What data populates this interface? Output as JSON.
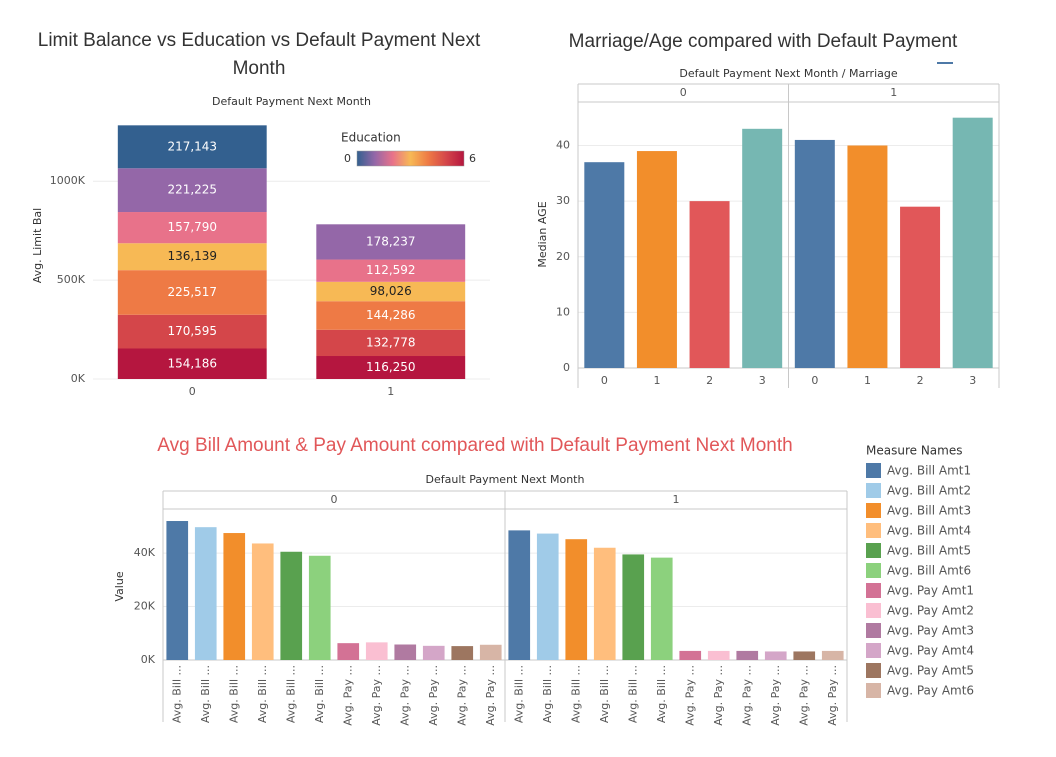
{
  "chart_data": [
    {
      "type": "stacked_bar",
      "title": "Limit Balance vs Education vs Default Payment Next Month",
      "x_header": "Default Payment Next Month",
      "y_label": "Avg. Limit Bal",
      "categories": [
        "0",
        "1"
      ],
      "series": [
        {
          "color": "#b5163f",
          "values": [
            154186,
            116250
          ],
          "value_labels": [
            "154,186",
            "116,250"
          ]
        },
        {
          "color": "#d4464a",
          "values": [
            170595,
            132778
          ],
          "value_labels": [
            "170,595",
            "132,778"
          ]
        },
        {
          "color": "#ee7a45",
          "values": [
            225517,
            144286
          ],
          "value_labels": [
            "225,517",
            "144,286"
          ]
        },
        {
          "color": "#f7b955",
          "values": [
            136139,
            98026
          ],
          "value_labels": [
            "136,139",
            "98,026"
          ]
        },
        {
          "color": "#e8728a",
          "values": [
            157790,
            112592
          ],
          "value_labels": [
            "157,790",
            "112,592"
          ]
        },
        {
          "color": "#9467a8",
          "values": [
            221225,
            178237
          ],
          "value_labels": [
            "221,225",
            "178,237"
          ]
        },
        {
          "color": "#33608f",
          "values": [
            217143,
            null
          ],
          "value_labels": [
            "217,143",
            null
          ]
        }
      ],
      "ylim": [
        0,
        1350000
      ],
      "yticks": [
        {
          "value": 0,
          "label": "0K"
        },
        {
          "value": 500000,
          "label": "500K"
        },
        {
          "value": 1000000,
          "label": "1000K"
        }
      ],
      "grid": true,
      "legend_title": "Education",
      "color_scale": {
        "min": 0,
        "max": 6,
        "colors": [
          "#33608f",
          "#9467a8",
          "#e8728a",
          "#f7b955",
          "#ee7a45",
          "#d4464a",
          "#b5163f"
        ]
      }
    },
    {
      "type": "bar",
      "title": "Marriage/Age compared with Default Payment",
      "x_header": "Default Payment Next Month / Marriage",
      "y_label": "Median AGE",
      "categories": [
        "0",
        "1",
        "2",
        "3"
      ],
      "colors": [
        "#4e79a7",
        "#f28e2b",
        "#e15759",
        "#76b7b2"
      ],
      "panels": [
        {
          "label": "0",
          "values": [
            37,
            39,
            30,
            43
          ]
        },
        {
          "label": "1",
          "values": [
            41,
            40,
            29,
            45
          ]
        }
      ],
      "ylim": [
        0,
        48
      ],
      "yticks": [
        0,
        10,
        20,
        30,
        40
      ],
      "grid": true
    },
    {
      "type": "bar",
      "title": "Avg Bill Amount & Pay Amount compared with Default Payment Next Month",
      "title_color": "#e15759",
      "x_header": "Default Payment Next Month",
      "y_label": "Value",
      "series_names": [
        "Avg. Bill Amt1",
        "Avg. Bill Amt2",
        "Avg. Bill Amt3",
        "Avg. Bill Amt4",
        "Avg. Bill Amt5",
        "Avg. Bill Amt6",
        "Avg. Pay Amt1",
        "Avg. Pay Amt2",
        "Avg. Pay Amt3",
        "Avg. Pay Amt4",
        "Avg. Pay Amt5",
        "Avg. Pay Amt6"
      ],
      "tick_labels": [
        "Avg. Bill ...",
        "Avg. Bill ...",
        "Avg. Bill ...",
        "Avg. Bill ...",
        "Avg. Bill ...",
        "Avg. Bill ...",
        "Avg. Pay ...",
        "Avg. Pay ...",
        "Avg. Pay ...",
        "Avg. Pay ...",
        "Avg. Pay ...",
        "Avg. Pay ..."
      ],
      "colors": [
        "#4e79a7",
        "#a0cbe8",
        "#f28e2b",
        "#ffbe7d",
        "#59a14f",
        "#8cd17d",
        "#d37295",
        "#fabfd2",
        "#b07aa1",
        "#d4a6c8",
        "#9d7660",
        "#d7b5a6"
      ],
      "panels": [
        {
          "label": "0",
          "values": [
            52000,
            49700,
            47500,
            43600,
            40500,
            39000,
            6300,
            6600,
            5800,
            5300,
            5200,
            5700
          ]
        },
        {
          "label": "1",
          "values": [
            48500,
            47300,
            45200,
            42000,
            39500,
            38300,
            3400,
            3400,
            3400,
            3200,
            3200,
            3400
          ]
        }
      ],
      "ylim": [
        0,
        55000
      ],
      "yticks": [
        {
          "value": 0,
          "label": "0K"
        },
        {
          "value": 20000,
          "label": "20K"
        },
        {
          "value": 40000,
          "label": "40K"
        }
      ],
      "grid": true,
      "legend_title": "Measure Names"
    }
  ]
}
